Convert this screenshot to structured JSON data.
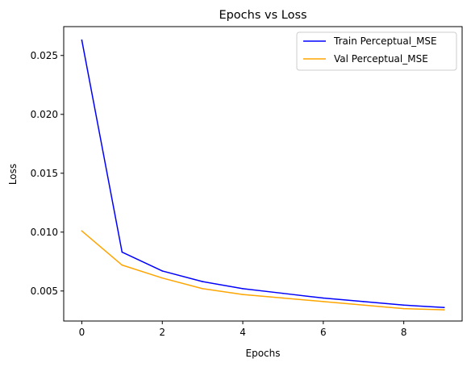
{
  "chart_data": {
    "type": "line",
    "title": "Epochs vs Loss",
    "xlabel": "Epochs",
    "ylabel": "Loss",
    "xlim": [
      -0.45,
      9.45
    ],
    "ylim": [
      0.00245,
      0.02745
    ],
    "x": [
      0,
      1,
      2,
      3,
      4,
      5,
      6,
      7,
      8,
      9
    ],
    "xticks": [
      0,
      2,
      4,
      6,
      8
    ],
    "xtick_labels": [
      "0",
      "2",
      "4",
      "6",
      "8"
    ],
    "yticks": [
      0.005,
      0.01,
      0.015,
      0.02,
      0.025
    ],
    "ytick_labels": [
      "0.005",
      "0.010",
      "0.015",
      "0.020",
      "0.025"
    ],
    "grid": false,
    "legend_position": "top-right",
    "series": [
      {
        "name": "Train Perceptual_MSE",
        "color": "#0000ff",
        "values": [
          0.0263,
          0.0083,
          0.0067,
          0.0058,
          0.0052,
          0.0048,
          0.0044,
          0.0041,
          0.0038,
          0.0036
        ]
      },
      {
        "name": "Val Perceptual_MSE",
        "color": "#ffa500",
        "values": [
          0.0101,
          0.0072,
          0.0061,
          0.0052,
          0.0047,
          0.0044,
          0.0041,
          0.0038,
          0.0035,
          0.0034
        ]
      }
    ]
  }
}
